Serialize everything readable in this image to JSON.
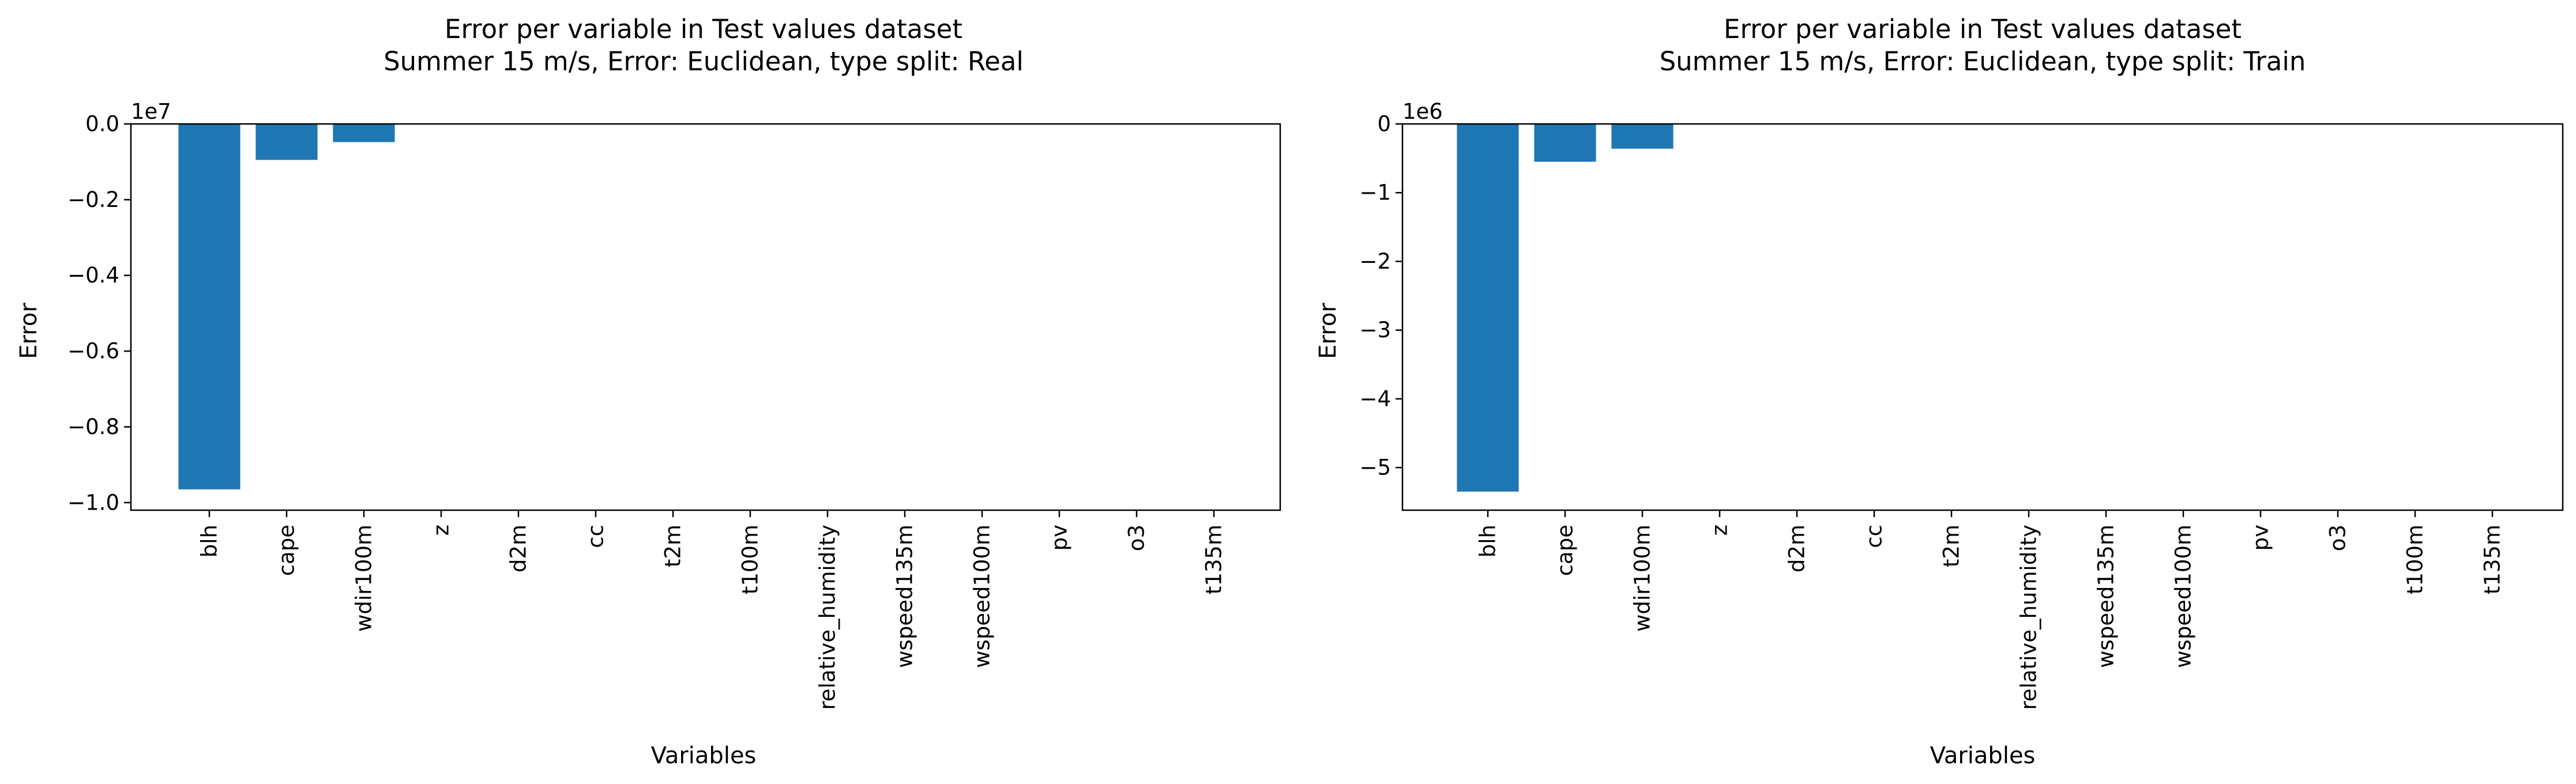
{
  "chart_data": [
    {
      "type": "bar",
      "title": "Error per variable in Test values dataset",
      "subtitle": "Summer 15 m/s, Error: Euclidean, type split: Real",
      "xlabel": "Variables",
      "ylabel": "Error",
      "offset_label": "1e7",
      "ylim": [
        -1.02,
        0.0
      ],
      "yticks": [
        0.0,
        -0.2,
        -0.4,
        -0.6,
        -0.8,
        -1.0
      ],
      "ytick_labels": [
        "0.0",
        "−0.2",
        "−0.4",
        "−0.6",
        "−0.8",
        "−1.0"
      ],
      "categories": [
        "blh",
        "cape",
        "wdir100m",
        "z",
        "d2m",
        "cc",
        "t2m",
        "t100m",
        "relative_humidity",
        "wspeed135m",
        "wspeed100m",
        "pv",
        "o3",
        "t135m"
      ],
      "values": [
        -0.965,
        -0.095,
        -0.048,
        0,
        0,
        0,
        0,
        0,
        0,
        0,
        0,
        0,
        0,
        0
      ],
      "bar_color": "#1f77b4",
      "grid": false
    },
    {
      "type": "bar",
      "title": "Error per variable in Test values dataset",
      "subtitle": "Summer 15 m/s, Error: Euclidean, type split: Train",
      "xlabel": "Variables",
      "ylabel": "Error",
      "offset_label": "1e6",
      "ylim": [
        -5.62,
        0.0
      ],
      "yticks": [
        0,
        -1,
        -2,
        -3,
        -4,
        -5
      ],
      "ytick_labels": [
        "0",
        "−1",
        "−2",
        "−3",
        "−4",
        "−5"
      ],
      "categories": [
        "blh",
        "cape",
        "wdir100m",
        "z",
        "d2m",
        "cc",
        "t2m",
        "relative_humidity",
        "wspeed135m",
        "wspeed100m",
        "pv",
        "o3",
        "t100m",
        "t135m"
      ],
      "values": [
        -5.35,
        -0.55,
        -0.36,
        0,
        0,
        0,
        0,
        0,
        0,
        0,
        0,
        0,
        0,
        0
      ],
      "bar_color": "#1f77b4",
      "grid": false
    }
  ]
}
